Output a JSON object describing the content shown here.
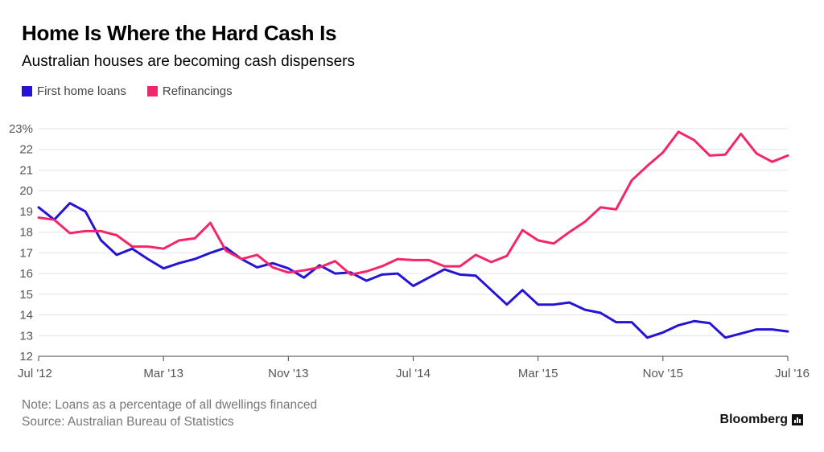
{
  "title": "Home Is Where the Hard Cash Is",
  "subtitle": "Australian houses are becoming cash dispensers",
  "footer": {
    "note": "Note: Loans as a percentage of all dwellings financed",
    "source": "Source: Australian Bureau of Statistics"
  },
  "brand": "Bloomberg",
  "colors": {
    "first_home": "#2614d6",
    "refinancings": "#f4256d"
  },
  "chart_data": {
    "type": "line",
    "title": "Home Is Where the Hard Cash Is",
    "subtitle": "Australian houses are becoming cash dispensers",
    "xlabel": "",
    "ylabel": "",
    "ylim": [
      12,
      23
    ],
    "yticks": [
      12,
      13,
      14,
      15,
      16,
      17,
      18,
      19,
      20,
      21,
      22,
      23
    ],
    "ytick_labels": [
      "12",
      "13",
      "14",
      "15",
      "16",
      "17",
      "18",
      "19",
      "20",
      "21",
      "22",
      "23%"
    ],
    "x_range": [
      "Jul '12",
      "Jul '16"
    ],
    "xtick_labels": [
      "Jul '12",
      "Mar '13",
      "Nov '13",
      "Jul '14",
      "Mar '15",
      "Nov '15",
      "Jul '16"
    ],
    "legend_position": "top-left",
    "grid": true,
    "x": [
      "Jul '12",
      "Aug '12",
      "Sep '12",
      "Oct '12",
      "Nov '12",
      "Dec '12",
      "Jan '13",
      "Feb '13",
      "Mar '13",
      "Apr '13",
      "May '13",
      "Jun '13",
      "Jul '13",
      "Aug '13",
      "Sep '13",
      "Oct '13",
      "Nov '13",
      "Dec '13",
      "Jan '14",
      "Feb '14",
      "Mar '14",
      "Apr '14",
      "May '14",
      "Jun '14",
      "Jul '14",
      "Aug '14",
      "Sep '14",
      "Oct '14",
      "Nov '14",
      "Dec '14",
      "Jan '15",
      "Feb '15",
      "Mar '15",
      "Apr '15",
      "May '15",
      "Jun '15",
      "Jul '15",
      "Aug '15",
      "Sep '15",
      "Oct '15",
      "Nov '15",
      "Dec '15",
      "Jan '16",
      "Feb '16",
      "Mar '16",
      "Apr '16",
      "May '16",
      "Jun '16",
      "Jul '16"
    ],
    "series": [
      {
        "name": "First home loans",
        "color": "#2614d6",
        "values": [
          19.2,
          18.6,
          19.4,
          19.0,
          17.6,
          16.9,
          17.2,
          16.7,
          16.25,
          16.5,
          16.7,
          17.0,
          17.25,
          16.7,
          16.3,
          16.5,
          16.25,
          15.8,
          16.4,
          16.0,
          16.05,
          15.65,
          15.95,
          16.0,
          15.4,
          15.8,
          16.2,
          15.95,
          15.9,
          15.2,
          14.5,
          15.2,
          14.5,
          14.5,
          14.6,
          14.25,
          14.1,
          13.65,
          13.65,
          12.9,
          13.15,
          13.5,
          13.7,
          13.6,
          12.9,
          13.1,
          13.3,
          13.3,
          13.2
        ]
      },
      {
        "name": "Refinancings",
        "color": "#f4256d",
        "values": [
          18.7,
          18.6,
          17.95,
          18.05,
          18.05,
          17.85,
          17.3,
          17.3,
          17.2,
          17.6,
          17.7,
          18.45,
          17.1,
          16.7,
          16.9,
          16.3,
          16.05,
          16.15,
          16.3,
          16.6,
          15.95,
          16.1,
          16.35,
          16.7,
          16.65,
          16.65,
          16.35,
          16.35,
          16.9,
          16.55,
          16.85,
          18.1,
          17.6,
          17.45,
          18.0,
          18.5,
          19.2,
          19.1,
          20.5,
          21.2,
          21.85,
          22.85,
          22.45,
          21.7,
          21.75,
          22.75,
          21.8,
          21.4,
          21.7
        ]
      }
    ]
  }
}
